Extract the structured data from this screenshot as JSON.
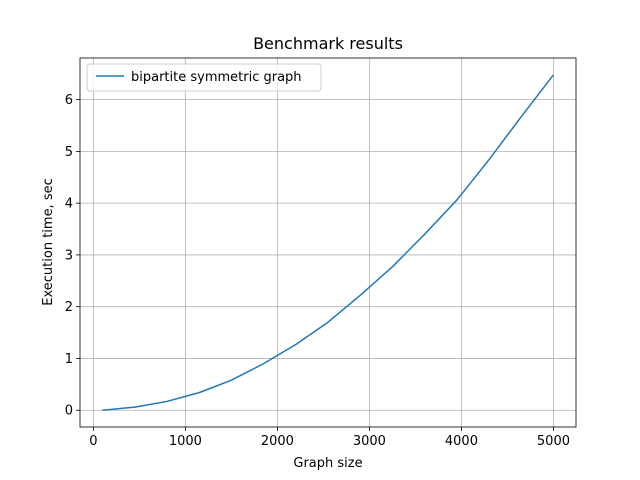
{
  "chart_data": {
    "type": "line",
    "title": "Benchmark results",
    "xlabel": "Graph size",
    "ylabel": "Execution time, sec",
    "xlim": [
      -145,
      5245
    ],
    "ylim": [
      -0.324,
      6.804
    ],
    "xticks": [
      0,
      1000,
      2000,
      3000,
      4000,
      5000
    ],
    "yticks": [
      0,
      1,
      2,
      3,
      4,
      5,
      6
    ],
    "grid": true,
    "legend": "upper-left",
    "series": [
      {
        "name": "bipartite symmetric graph",
        "color": "#1f77b4",
        "x": [
          100,
          450,
          800,
          1150,
          1500,
          1850,
          2200,
          2550,
          2900,
          3250,
          3600,
          3950,
          4300,
          4650,
          5000
        ],
        "y": [
          0.0,
          0.06,
          0.17,
          0.34,
          0.58,
          0.9,
          1.27,
          1.7,
          2.22,
          2.77,
          3.4,
          4.06,
          4.84,
          5.67,
          6.48
        ]
      }
    ]
  }
}
